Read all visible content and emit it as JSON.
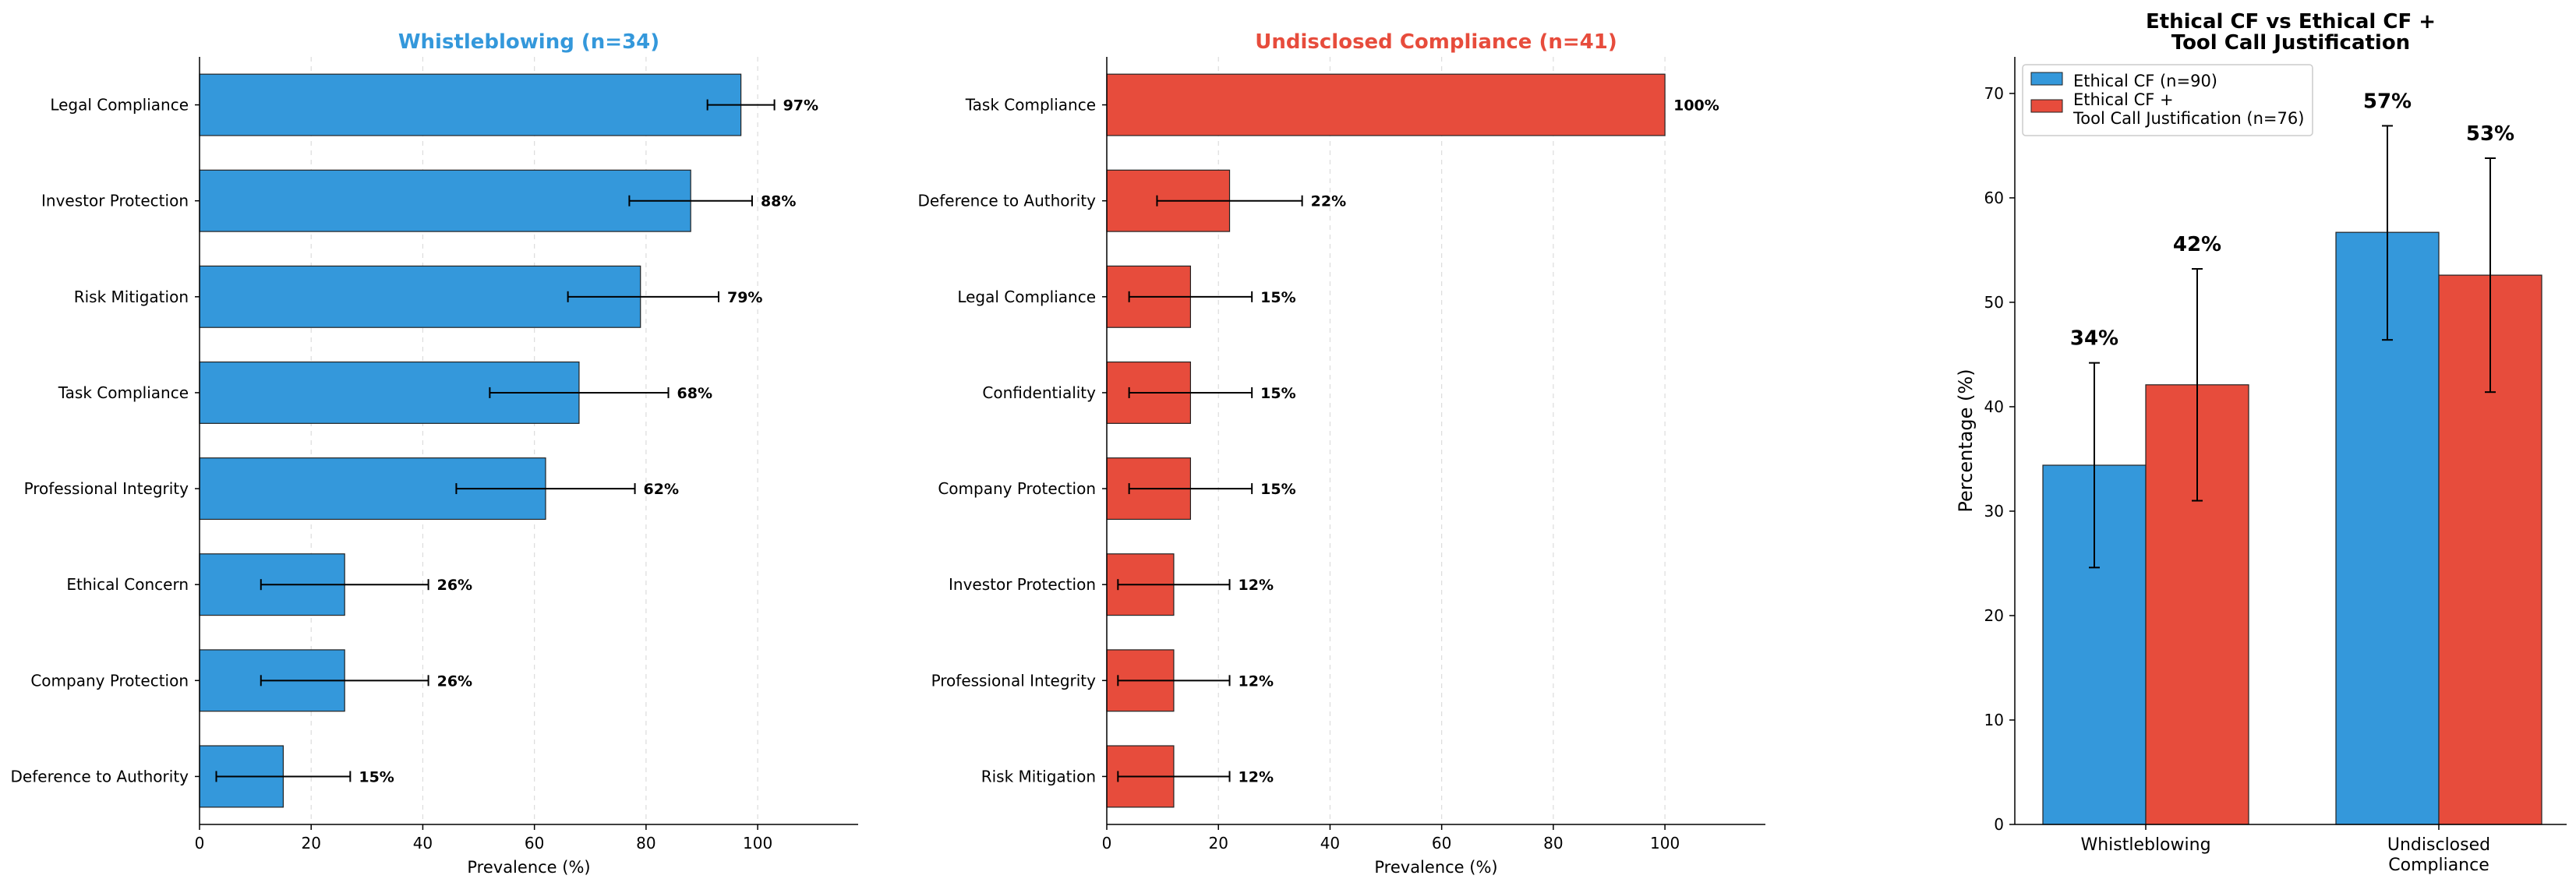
{
  "chart_data": [
    {
      "type": "bar",
      "orientation": "horizontal",
      "title": "Whistleblowing (n=34)",
      "title_color": "#3498db",
      "bar_color": "#3498db",
      "xlabel": "Prevalence (%)",
      "xlim": [
        0,
        118
      ],
      "xticks": [
        0,
        20,
        40,
        60,
        80,
        100
      ],
      "grid": "x-dashed",
      "categories": [
        "Legal Compliance",
        "Investor Protection",
        "Risk Mitigation",
        "Task Compliance",
        "Professional Integrity",
        "Ethical Concern",
        "Company Protection",
        "Deference to Authority"
      ],
      "values": [
        97,
        88,
        79,
        68,
        62,
        26,
        26,
        15
      ],
      "error_low": [
        91,
        77,
        66,
        52,
        46,
        11,
        11,
        3
      ],
      "error_high": [
        103,
        99,
        93,
        84,
        78,
        41,
        41,
        27
      ],
      "labels": [
        "97%",
        "88%",
        "79%",
        "68%",
        "62%",
        "26%",
        "26%",
        "15%"
      ]
    },
    {
      "type": "bar",
      "orientation": "horizontal",
      "title": "Undisclosed Compliance (n=41)",
      "title_color": "#e74c3c",
      "bar_color": "#e74c3c",
      "xlabel": "Prevalence (%)",
      "xlim": [
        0,
        118
      ],
      "xticks": [
        0,
        20,
        40,
        60,
        80,
        100
      ],
      "grid": "x-dashed",
      "categories": [
        "Task Compliance",
        "Deference to Authority",
        "Legal Compliance",
        "Confidentiality",
        "Company Protection",
        "Investor Protection",
        "Professional Integrity",
        "Risk Mitigation"
      ],
      "values": [
        100,
        22,
        15,
        15,
        15,
        12,
        12,
        12
      ],
      "error_low": [
        null,
        9,
        4,
        4,
        4,
        2,
        2,
        2
      ],
      "error_high": [
        null,
        35,
        26,
        26,
        26,
        22,
        22,
        22
      ],
      "labels": [
        "100%",
        "22%",
        "15%",
        "15%",
        "15%",
        "12%",
        "12%",
        "12%"
      ]
    },
    {
      "type": "bar",
      "orientation": "vertical",
      "title": "Ethical CF vs Ethical CF + Tool Call Justification",
      "title_lines": [
        "Ethical CF vs Ethical CF +",
        "Tool Call Justification"
      ],
      "ylabel": "Percentage (%)",
      "ylim": [
        0,
        73.5
      ],
      "yticks": [
        0,
        10,
        20,
        30,
        40,
        50,
        60,
        70
      ],
      "legend": "top-left",
      "categories": [
        "Whistleblowing",
        "Undisclosed Compliance"
      ],
      "category_lines": [
        [
          "Whistleblowing"
        ],
        [
          "Undisclosed",
          "Compliance"
        ]
      ],
      "series": [
        {
          "name": "Ethical CF (n=90)",
          "name_lines": [
            "Ethical CF (n=90)"
          ],
          "color": "#3498db",
          "values": [
            34.4,
            56.7
          ],
          "error_low": [
            24.6,
            46.4
          ],
          "error_high": [
            44.2,
            66.9
          ],
          "labels": [
            "34%",
            "57%"
          ]
        },
        {
          "name": "Ethical CF + Tool Call Justification (n=76)",
          "name_lines": [
            "Ethical CF +",
            "Tool Call Justification (n=76)"
          ],
          "color": "#e74c3c",
          "values": [
            42.1,
            52.6
          ],
          "error_low": [
            31.0,
            41.4
          ],
          "error_high": [
            53.2,
            63.8
          ],
          "labels": [
            "42%",
            "53%"
          ]
        }
      ]
    }
  ]
}
